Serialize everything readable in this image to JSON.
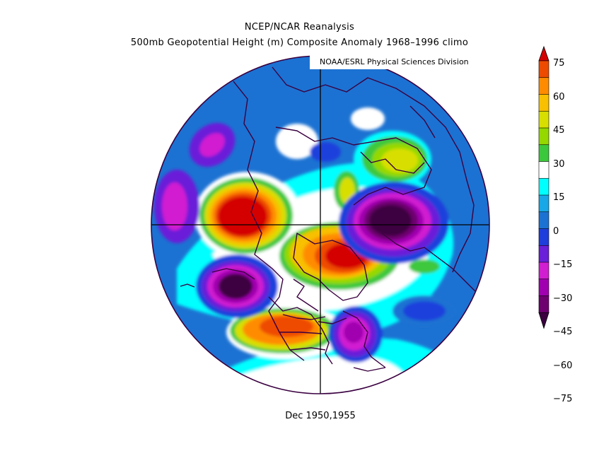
{
  "title": {
    "line1": "NCEP/NCAR Reanalysis",
    "line2": "500mb Geopotential Height (m) Composite Anomaly 1968–1996 climo"
  },
  "credit": "NOAA/ESRL Physical Sciences Division",
  "caption": "Dec 1950,1955",
  "colorbar": {
    "ticks": [
      "75",
      "60",
      "45",
      "30",
      "15",
      "0",
      "−15",
      "−30",
      "−45",
      "−60",
      "−75"
    ],
    "colors": [
      "#d40000",
      "#ee4b00",
      "#ff8c00",
      "#f8c000",
      "#d8df00",
      "#94d800",
      "#3cc83c",
      "#ffffff",
      "#00ffff",
      "#18a8e8",
      "#1c72d2",
      "#1f3fdc",
      "#6a1fd8",
      "#d11ed1",
      "#a000b0",
      "#6e0070",
      "#3c0040"
    ]
  },
  "map": {
    "projection": "north-polar-stereographic",
    "background_color": "#1c72d2",
    "coastline_color": "#3a0040"
  }
}
